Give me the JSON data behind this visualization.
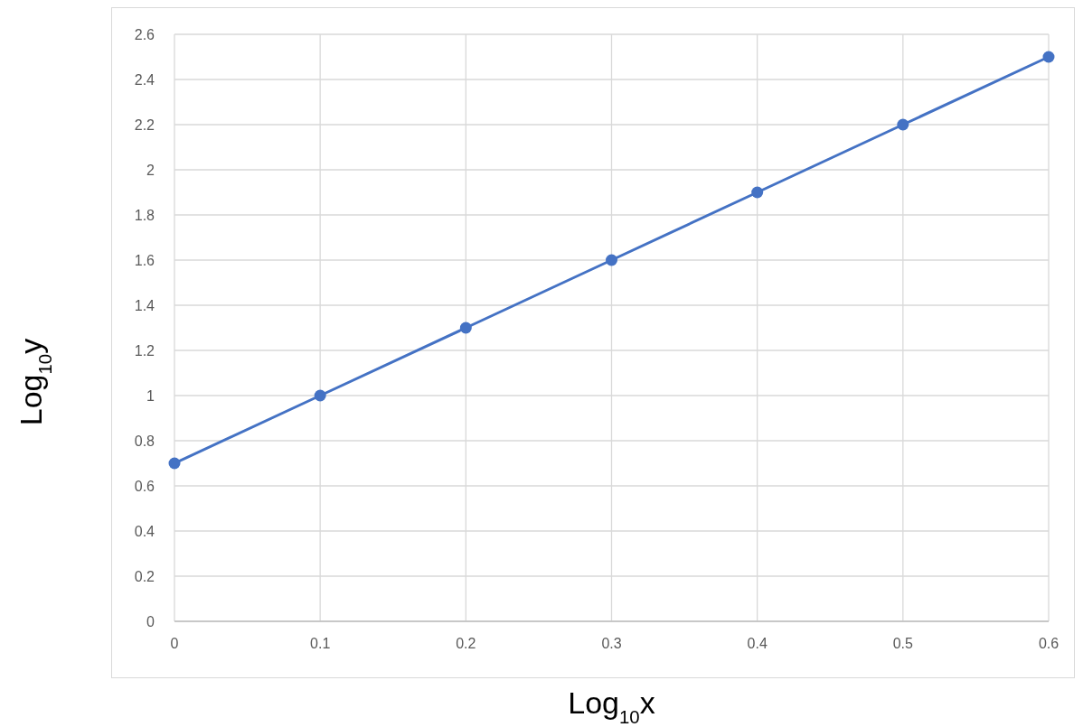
{
  "chart_data": {
    "type": "line",
    "xlabel": "Log$_{10}$x",
    "ylabel": "Log$_{10}$y",
    "x": [
      0,
      0.1,
      0.2,
      0.3,
      0.4,
      0.5,
      0.6
    ],
    "series": [
      {
        "color": "#4472c4",
        "values": [
          0.7,
          1.0,
          1.3,
          1.6,
          1.9,
          2.2,
          2.5
        ]
      }
    ],
    "xlim": [
      0,
      0.6
    ],
    "xticks": [
      0,
      0.1,
      0.2,
      0.3,
      0.4,
      0.5,
      0.6
    ],
    "ylim": [
      0,
      2.6
    ],
    "yticks": [
      0,
      0.2,
      0.4,
      0.6,
      0.8,
      1,
      1.2,
      1.4,
      1.6,
      1.8,
      2,
      2.2,
      2.4,
      2.6
    ],
    "grid": true,
    "marker": "circle",
    "line_style": "solid"
  }
}
